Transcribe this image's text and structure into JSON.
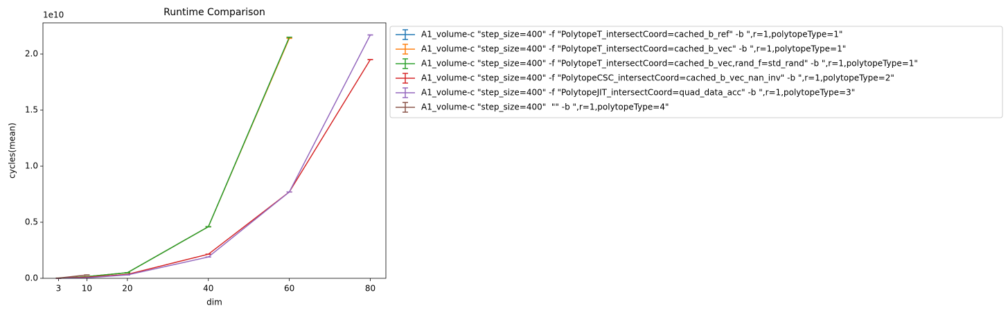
{
  "chart_data": {
    "type": "errorbar-line",
    "title": "Runtime Comparison",
    "xlabel": "dim",
    "ylabel": "cycles(mean)",
    "y_offset_label": "1e10",
    "xlim": [
      -0.85,
      83.85
    ],
    "ylim": [
      0,
      22780000000
    ],
    "xticks": [
      3,
      10,
      20,
      40,
      60,
      80
    ],
    "yticks": [
      {
        "value": 0,
        "label": "0.0"
      },
      {
        "value": 5000000000,
        "label": "0.5"
      },
      {
        "value": 10000000000,
        "label": "1.0"
      },
      {
        "value": 15000000000,
        "label": "1.5"
      },
      {
        "value": 20000000000,
        "label": "2.0"
      }
    ],
    "legend": "outside upper left",
    "series": [
      {
        "name": "A1_volume-c \"step_size=400\" -f \"PolytopeT_intersectCoord=cached_b_ref\" -b \",r=1,polytopeType=1\"",
        "color": "#1f77b4",
        "x": [
          3,
          10,
          20,
          40,
          60
        ],
        "values": [
          10000000,
          150000000,
          500000000,
          4600000000,
          21500000000
        ],
        "yerr": [
          0,
          0,
          0,
          0,
          0
        ]
      },
      {
        "name": "A1_volume-c \"step_size=400\" -f \"PolytopeT_intersectCoord=cached_b_vec\" -b \",r=1,polytopeType=1\"",
        "color": "#ff7f0e",
        "x": [
          3,
          10,
          20,
          40,
          60
        ],
        "values": [
          10000000,
          150000000,
          500000000,
          4600000000,
          21400000000
        ],
        "yerr": [
          0,
          0,
          0,
          0,
          0
        ]
      },
      {
        "name": "A1_volume-c \"step_size=400\" -f \"PolytopeT_intersectCoord=cached_b_vec,rand_f=std_rand\" -b \",r=1,polytopeType=1\"",
        "color": "#2ca02c",
        "x": [
          3,
          10,
          20,
          40,
          60
        ],
        "values": [
          10000000,
          150000000,
          500000000,
          4600000000,
          21500000000
        ],
        "yerr": [
          0,
          0,
          0,
          0,
          0
        ]
      },
      {
        "name": "A1_volume-c \"step_size=400\" -f \"PolytopeCSC_intersectCoord=cached_b_vec_nan_inv\" -b \",r=1,polytopeType=2\"",
        "color": "#d62728",
        "x": [
          3,
          10,
          20,
          40,
          60,
          80
        ],
        "values": [
          5000000,
          100000000,
          350000000,
          2150000000,
          7700000000,
          19500000000
        ],
        "yerr": [
          0,
          0,
          0,
          0,
          0,
          0
        ]
      },
      {
        "name": "A1_volume-c \"step_size=400\" -f \"PolytopeJIT_intersectCoord=quad_data_acc\" -b \",r=1,polytopeType=3\"",
        "color": "#9467bd",
        "x": [
          3,
          10,
          20,
          40,
          60,
          80
        ],
        "values": [
          5000000,
          50000000,
          300000000,
          1900000000,
          7700000000,
          21700000000
        ],
        "yerr": [
          0,
          0,
          0,
          0,
          0,
          0
        ]
      },
      {
        "name": "A1_volume-c \"step_size=400\"  \"\" -b \",r=1,polytopeType=4\"",
        "color": "#8c564b",
        "x": [
          3,
          10
        ],
        "values": [
          20000000,
          300000000
        ],
        "yerr": [
          0,
          0
        ]
      }
    ]
  }
}
